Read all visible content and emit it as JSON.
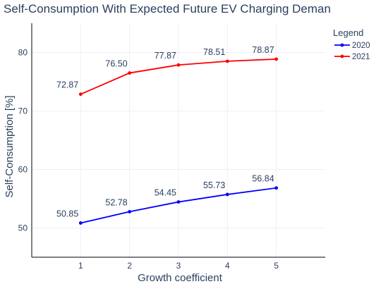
{
  "chart_data": {
    "type": "line",
    "title": "Self-Consumption With Expected Future EV Charging Deman",
    "xlabel": "Growth coefficient",
    "ylabel": "Self-Consumption [%]",
    "x": [
      1,
      2,
      3,
      4,
      5
    ],
    "xticks": [
      "1",
      "2",
      "3",
      "4",
      "5"
    ],
    "xlim": [
      0,
      6
    ],
    "yticks": [
      "50",
      "60",
      "70",
      "80"
    ],
    "ylim": [
      45,
      85
    ],
    "grid": true,
    "legend": {
      "title": "Legend",
      "placement": "top-right"
    },
    "series": [
      {
        "name": "2020",
        "color": "#0000ff",
        "values": [
          50.85,
          52.78,
          54.45,
          55.73,
          56.84
        ],
        "labels": [
          "50.85",
          "52.78",
          "54.45",
          "55.73",
          "56.84"
        ]
      },
      {
        "name": "2021",
        "color": "#ff0000",
        "values": [
          72.87,
          76.5,
          77.87,
          78.51,
          78.87
        ],
        "labels": [
          "72.87",
          "76.50",
          "77.87",
          "78.51",
          "78.87"
        ]
      }
    ]
  }
}
